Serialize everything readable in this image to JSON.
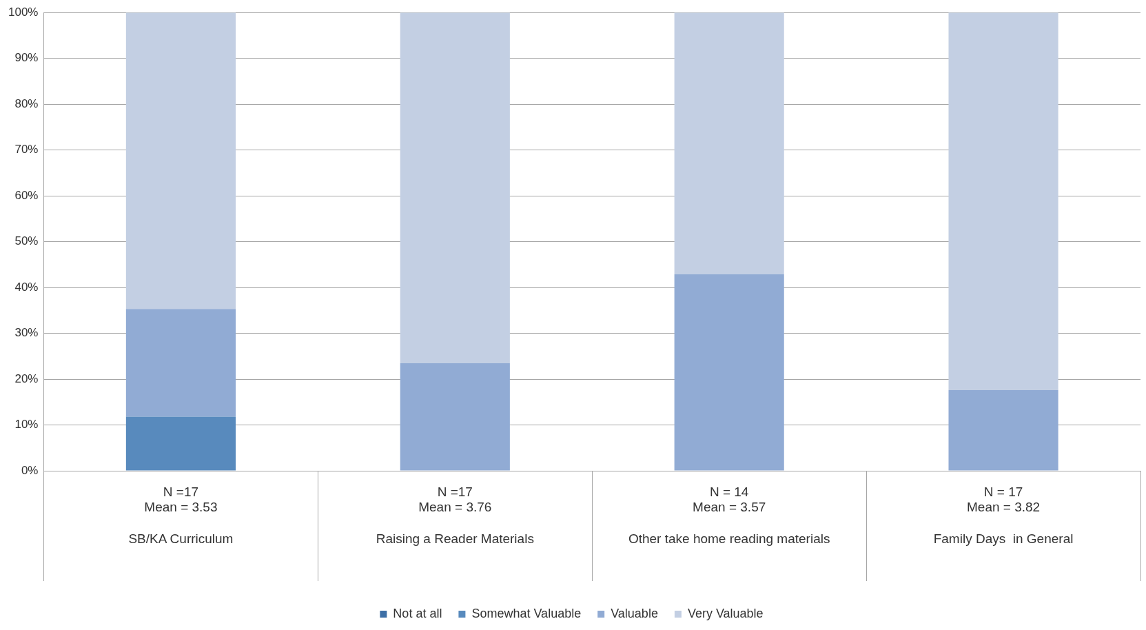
{
  "chart_data": {
    "type": "bar",
    "stacked": true,
    "categories": [
      "N =17\nMean = 3.53\n\nSB/KA Curriculum",
      "N =17\nMean = 3.76\n\nRaising a Reader Materials",
      "N = 14\nMean = 3.57\n\nOther take home reading materials",
      "N = 17\nMean = 3.82\n\nFamily Days  in General"
    ],
    "series": [
      {
        "name": "Not at all",
        "color": "#3d6fa6",
        "values": [
          0,
          0,
          0,
          0
        ]
      },
      {
        "name": "Somewhat Valuable",
        "color": "#588abd",
        "values": [
          11.8,
          0,
          0,
          0
        ]
      },
      {
        "name": "Valuable",
        "color": "#91abd4",
        "values": [
          23.5,
          23.5,
          42.9,
          17.6
        ]
      },
      {
        "name": "Very Valuable",
        "color": "#c3cfe3",
        "values": [
          64.7,
          76.5,
          57.1,
          82.4
        ]
      }
    ],
    "ylim": [
      0,
      100
    ],
    "yticks": [
      {
        "value": 0,
        "label": "0%"
      },
      {
        "value": 10,
        "label": "10%"
      },
      {
        "value": 20,
        "label": "20%"
      },
      {
        "value": 30,
        "label": "30%"
      },
      {
        "value": 40,
        "label": "40%"
      },
      {
        "value": 50,
        "label": "50%"
      },
      {
        "value": 60,
        "label": "60%"
      },
      {
        "value": 70,
        "label": "70%"
      },
      {
        "value": 80,
        "label": "80%"
      },
      {
        "value": 90,
        "label": "90%"
      },
      {
        "value": 100,
        "label": "100%"
      }
    ],
    "grid": "y",
    "legend": "bottom"
  }
}
